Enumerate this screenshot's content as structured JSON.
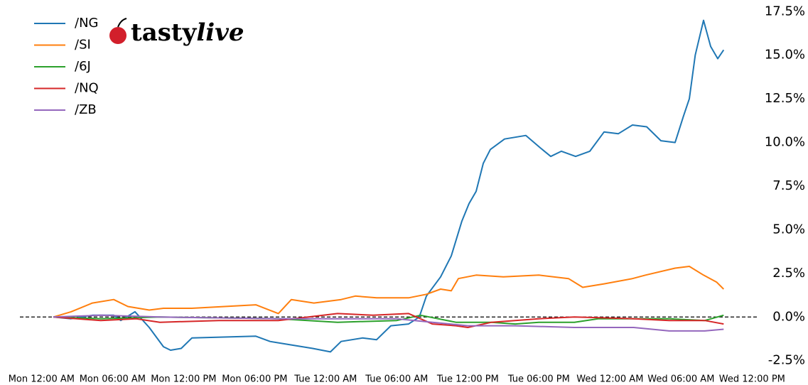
{
  "chart_data": {
    "type": "line",
    "logo": [
      "tasty",
      "live"
    ],
    "legend": "upper left",
    "hline": 0,
    "xlim": [
      -2,
      61
    ],
    "xticks": [
      {
        "value": 0,
        "label": "Mon 12:00 AM"
      },
      {
        "value": 6,
        "label": "Mon 06:00 AM"
      },
      {
        "value": 12,
        "label": "Mon 12:00 PM"
      },
      {
        "value": 18,
        "label": "Mon 06:00 PM"
      },
      {
        "value": 24,
        "label": "Tue 12:00 AM"
      },
      {
        "value": 30,
        "label": "Tue 06:00 AM"
      },
      {
        "value": 36,
        "label": "Tue 12:00 PM"
      },
      {
        "value": 42,
        "label": "Tue 06:00 PM"
      },
      {
        "value": 48,
        "label": "Wed 12:00 AM"
      },
      {
        "value": 54,
        "label": "Wed 06:00 AM"
      },
      {
        "value": 60,
        "label": "Wed 12:00 PM"
      }
    ],
    "ylim": [
      -3,
      18
    ],
    "yticks": [
      {
        "value": -2.5,
        "label": "-2.5%"
      },
      {
        "value": 0,
        "label": "0.0%"
      },
      {
        "value": 2.5,
        "label": "2.5%"
      },
      {
        "value": 5,
        "label": "5.0%"
      },
      {
        "value": 7.5,
        "label": "7.5%"
      },
      {
        "value": 10,
        "label": "10.0%"
      },
      {
        "value": 12.5,
        "label": "12.5%"
      },
      {
        "value": 15,
        "label": "15.0%"
      },
      {
        "value": 17.5,
        "label": "17.5%"
      }
    ],
    "series": [
      {
        "name": "/NG",
        "color": "#1f77b4",
        "x": [
          1.0,
          2.5,
          4.3,
          6.1,
          6.7,
          7.9,
          9.1,
          10.3,
          10.9,
          11.8,
          12.7,
          18.1,
          19.3,
          21.1,
          22.9,
          24.4,
          25.3,
          27.1,
          28.3,
          29.5,
          31.0,
          31.9,
          32.5,
          33.7,
          34.6,
          35.5,
          36.1,
          36.7,
          37.3,
          37.9,
          39.1,
          40.9,
          42.1,
          43.0,
          43.9,
          45.1,
          46.3,
          47.5,
          48.7,
          49.9,
          51.1,
          52.3,
          53.5,
          54.2,
          54.7,
          55.2,
          55.9,
          56.5,
          57.1,
          57.6
        ],
        "values": [
          0,
          -0.1,
          0.1,
          0.1,
          -0.2,
          0.3,
          -0.6,
          -1.7,
          -1.9,
          -1.8,
          -1.2,
          -1.1,
          -1.4,
          -1.6,
          -1.8,
          -2.0,
          -1.4,
          -1.2,
          -1.3,
          -0.5,
          -0.4,
          0,
          1.2,
          2.3,
          3.5,
          5.5,
          6.5,
          7.2,
          8.8,
          9.6,
          10.2,
          10.4,
          9.7,
          9.2,
          9.5,
          9.2,
          9.5,
          10.6,
          10.5,
          11.0,
          10.9,
          10.1,
          10.0,
          11.5,
          12.5,
          15.0,
          17.0,
          15.5,
          14.8,
          15.3
        ]
      },
      {
        "name": "/SI",
        "color": "#ff7f0e",
        "x": [
          1.0,
          2.5,
          4.3,
          6.1,
          7.3,
          9.1,
          10.3,
          12.7,
          18.1,
          20.0,
          21.1,
          23.0,
          25.3,
          26.5,
          28.3,
          31.0,
          32.5,
          33.7,
          34.6,
          35.2,
          36.7,
          39.0,
          42.0,
          44.5,
          45.7,
          47.5,
          49.9,
          51.0,
          53.5,
          54.7,
          55.9,
          57.0,
          57.6
        ],
        "values": [
          0,
          0.3,
          0.8,
          1.0,
          0.6,
          0.4,
          0.5,
          0.5,
          0.7,
          0.2,
          1.0,
          0.8,
          1.0,
          1.2,
          1.1,
          1.1,
          1.3,
          1.6,
          1.5,
          2.2,
          2.4,
          2.3,
          2.4,
          2.2,
          1.7,
          1.9,
          2.2,
          2.4,
          2.8,
          2.9,
          2.4,
          2.0,
          1.6
        ]
      },
      {
        "name": "/6J",
        "color": "#2ca02c",
        "x": [
          1,
          5,
          10,
          20,
          25,
          30,
          32,
          35,
          38,
          40,
          42,
          45,
          47,
          50,
          53,
          56,
          57.6
        ],
        "values": [
          0,
          -0.1,
          0.0,
          -0.1,
          -0.3,
          -0.2,
          0.1,
          -0.3,
          -0.3,
          -0.4,
          -0.3,
          -0.3,
          -0.1,
          -0.1,
          -0.1,
          -0.2,
          0.1
        ]
      },
      {
        "name": "/NQ",
        "color": "#d62728",
        "x": [
          1,
          5,
          8,
          10,
          15,
          20,
          25,
          28,
          31,
          33,
          35,
          36,
          38,
          42,
          45,
          50,
          53,
          56,
          57.6
        ],
        "values": [
          0,
          -0.2,
          -0.1,
          -0.3,
          -0.2,
          -0.2,
          0.2,
          0.1,
          0.2,
          -0.4,
          -0.5,
          -0.6,
          -0.3,
          -0.1,
          0.0,
          -0.1,
          -0.2,
          -0.2,
          -0.4
        ]
      },
      {
        "name": "/ZB",
        "color": "#9467bd",
        "x": [
          1,
          5,
          10,
          20,
          25,
          30,
          33,
          36,
          40,
          45,
          50,
          53,
          56,
          57.6
        ],
        "values": [
          0,
          0.1,
          0.0,
          -0.1,
          -0.1,
          -0.1,
          -0.3,
          -0.5,
          -0.5,
          -0.6,
          -0.6,
          -0.8,
          -0.8,
          -0.7
        ]
      }
    ]
  }
}
